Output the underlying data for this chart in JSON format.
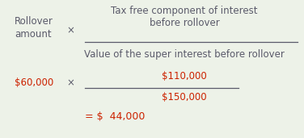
{
  "bg_color": "#edf2e8",
  "text_color": "#5a5a6a",
  "red_color": "#cc2200",
  "rollover_line1": "Rollover",
  "rollover_line2": "amount",
  "times_symbol": "×",
  "numerator_line1": "Tax free component of interest",
  "numerator_line2": "before rollover",
  "denominator": "Value of the super interest before rollover",
  "amount_label": "$60,000",
  "num_value": "$110,000",
  "den_value": "$150,000",
  "result": "= $  44,000",
  "font_size_main": 8.5,
  "font_size_result": 9.0
}
